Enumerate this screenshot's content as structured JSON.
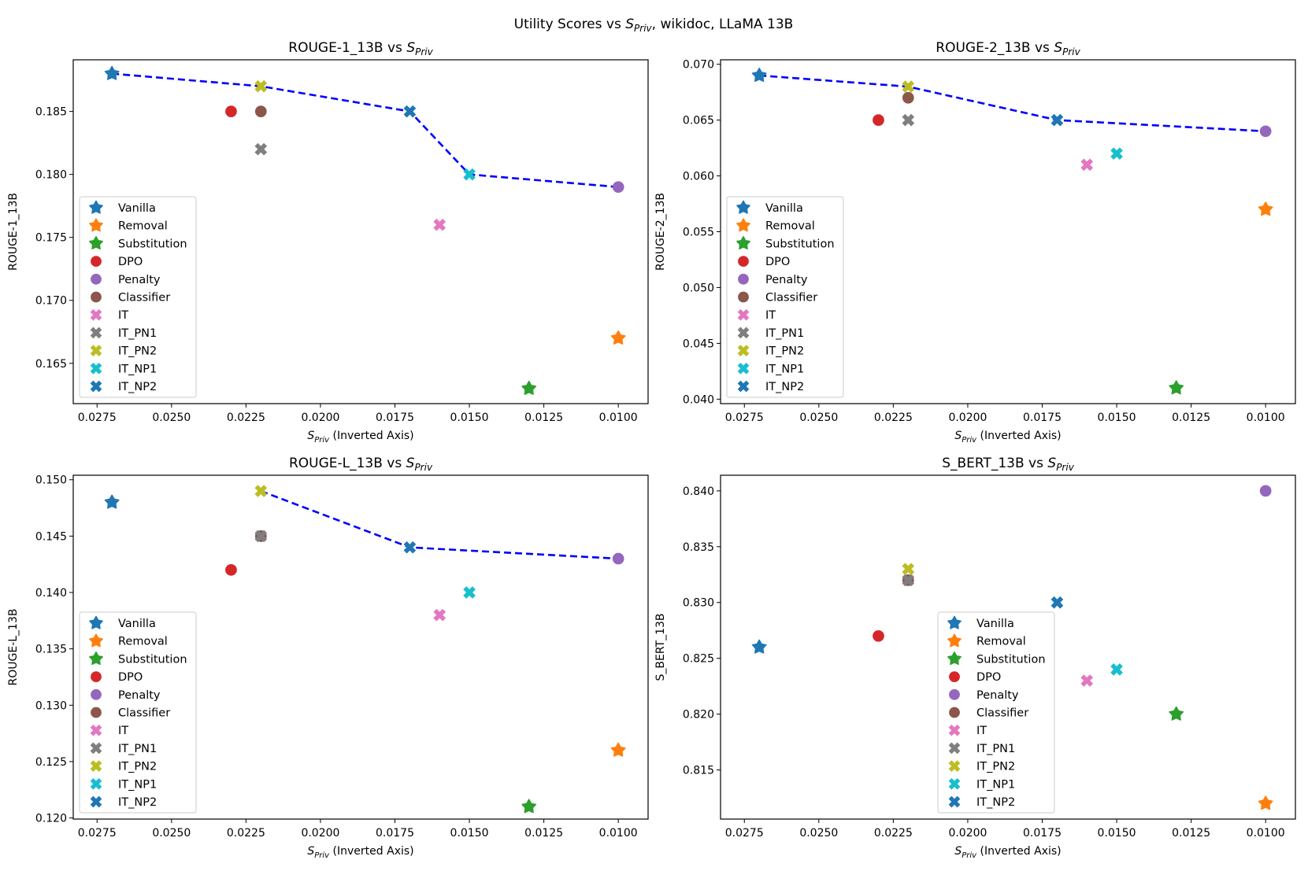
{
  "suptitle": {
    "prefix": "Utility Scores vs ",
    "sym": "S",
    "sub": "Priv",
    "suffix": ", wikidoc, LLaMA 13B"
  },
  "xlabel": {
    "sym": "S",
    "sub": "Priv",
    "suffix": " (Inverted Axis)"
  },
  "methods": [
    {
      "name": "Vanilla",
      "color": "#1f77b4",
      "marker": "star-icon"
    },
    {
      "name": "Removal",
      "color": "#ff7f0e",
      "marker": "star-icon"
    },
    {
      "name": "Substitution",
      "color": "#2ca02c",
      "marker": "star-icon"
    },
    {
      "name": "DPO",
      "color": "#d62728",
      "marker": "circle-icon"
    },
    {
      "name": "Penalty",
      "color": "#9467bd",
      "marker": "circle-icon"
    },
    {
      "name": "Classifier",
      "color": "#8c564b",
      "marker": "circle-icon"
    },
    {
      "name": "IT",
      "color": "#e377c2",
      "marker": "x-icon"
    },
    {
      "name": "IT_PN1",
      "color": "#7f7f7f",
      "marker": "x-icon"
    },
    {
      "name": "IT_PN2",
      "color": "#bcbd22",
      "marker": "x-icon"
    },
    {
      "name": "IT_NP1",
      "color": "#17becf",
      "marker": "x-icon"
    },
    {
      "name": "IT_NP2",
      "color": "#1f77b4",
      "marker": "x-icon"
    }
  ],
  "chart_data": [
    {
      "type": "scatter",
      "title": "ROUGE-1_13B vs ",
      "ylabel": "ROUGE-1_13B",
      "x": [
        0.027,
        0.01,
        0.013,
        0.023,
        0.01,
        0.022,
        0.016,
        0.022,
        0.022,
        0.015,
        0.017
      ],
      "y": [
        0.188,
        0.167,
        0.163,
        0.185,
        0.179,
        0.185,
        0.176,
        0.182,
        0.187,
        0.18,
        0.185
      ],
      "frontier": [
        0,
        8,
        10,
        9,
        4
      ],
      "xlim": [
        0.0283,
        0.009
      ],
      "ylim": [
        0.1618,
        0.1891
      ],
      "xticks": [
        "0.0275",
        "0.0250",
        "0.0225",
        "0.0200",
        "0.0175",
        "0.0150",
        "0.0125",
        "0.0100"
      ],
      "yticks": [
        "0.165",
        "0.170",
        "0.175",
        "0.180",
        "0.185"
      ],
      "legend": "lower-left"
    },
    {
      "type": "scatter",
      "title": "ROUGE-2_13B vs ",
      "ylabel": "ROUGE-2_13B",
      "x": [
        0.027,
        0.01,
        0.013,
        0.023,
        0.01,
        0.022,
        0.016,
        0.022,
        0.022,
        0.015,
        0.017
      ],
      "y": [
        0.069,
        0.057,
        0.041,
        0.065,
        0.064,
        0.067,
        0.061,
        0.065,
        0.068,
        0.062,
        0.065
      ],
      "frontier": [
        0,
        8,
        10,
        4
      ],
      "xlim": [
        0.0283,
        0.009
      ],
      "ylim": [
        0.0396,
        0.0704
      ],
      "xticks": [
        "0.0275",
        "0.0250",
        "0.0225",
        "0.0200",
        "0.0175",
        "0.0150",
        "0.0125",
        "0.0100"
      ],
      "yticks": [
        "0.040",
        "0.045",
        "0.050",
        "0.055",
        "0.060",
        "0.065",
        "0.070"
      ],
      "legend": "lower-left"
    },
    {
      "type": "scatter",
      "title": "ROUGE-L_13B vs ",
      "ylabel": "ROUGE-L_13B",
      "x": [
        0.027,
        0.01,
        0.013,
        0.023,
        0.01,
        0.022,
        0.016,
        0.022,
        0.022,
        0.015,
        0.017
      ],
      "y": [
        0.148,
        0.126,
        0.121,
        0.142,
        0.143,
        0.145,
        0.138,
        0.145,
        0.149,
        0.14,
        0.144
      ],
      "frontier": [
        8,
        10,
        4
      ],
      "xlim": [
        0.0283,
        0.009
      ],
      "ylim": [
        0.1199,
        0.1504
      ],
      "xticks": [
        "0.0275",
        "0.0250",
        "0.0225",
        "0.0200",
        "0.0175",
        "0.0150",
        "0.0125",
        "0.0100"
      ],
      "yticks": [
        "0.120",
        "0.125",
        "0.130",
        "0.135",
        "0.140",
        "0.145",
        "0.150"
      ],
      "legend": "lower-left"
    },
    {
      "type": "scatter",
      "title": "S_BERT_13B vs ",
      "ylabel": "S_BERT_13B",
      "x": [
        0.027,
        0.01,
        0.013,
        0.023,
        0.01,
        0.022,
        0.016,
        0.022,
        0.022,
        0.015,
        0.017
      ],
      "y": [
        0.826,
        0.812,
        0.82,
        0.827,
        0.84,
        0.832,
        0.823,
        0.832,
        0.833,
        0.824,
        0.83
      ],
      "frontier": [],
      "xlim": [
        0.0283,
        0.009
      ],
      "ylim": [
        0.8106,
        0.8414
      ],
      "xticks": [
        "0.0275",
        "0.0250",
        "0.0225",
        "0.0200",
        "0.0175",
        "0.0150",
        "0.0125",
        "0.0100"
      ],
      "yticks": [
        "0.815",
        "0.820",
        "0.825",
        "0.830",
        "0.835",
        "0.840"
      ],
      "legend": "lower-center"
    }
  ]
}
